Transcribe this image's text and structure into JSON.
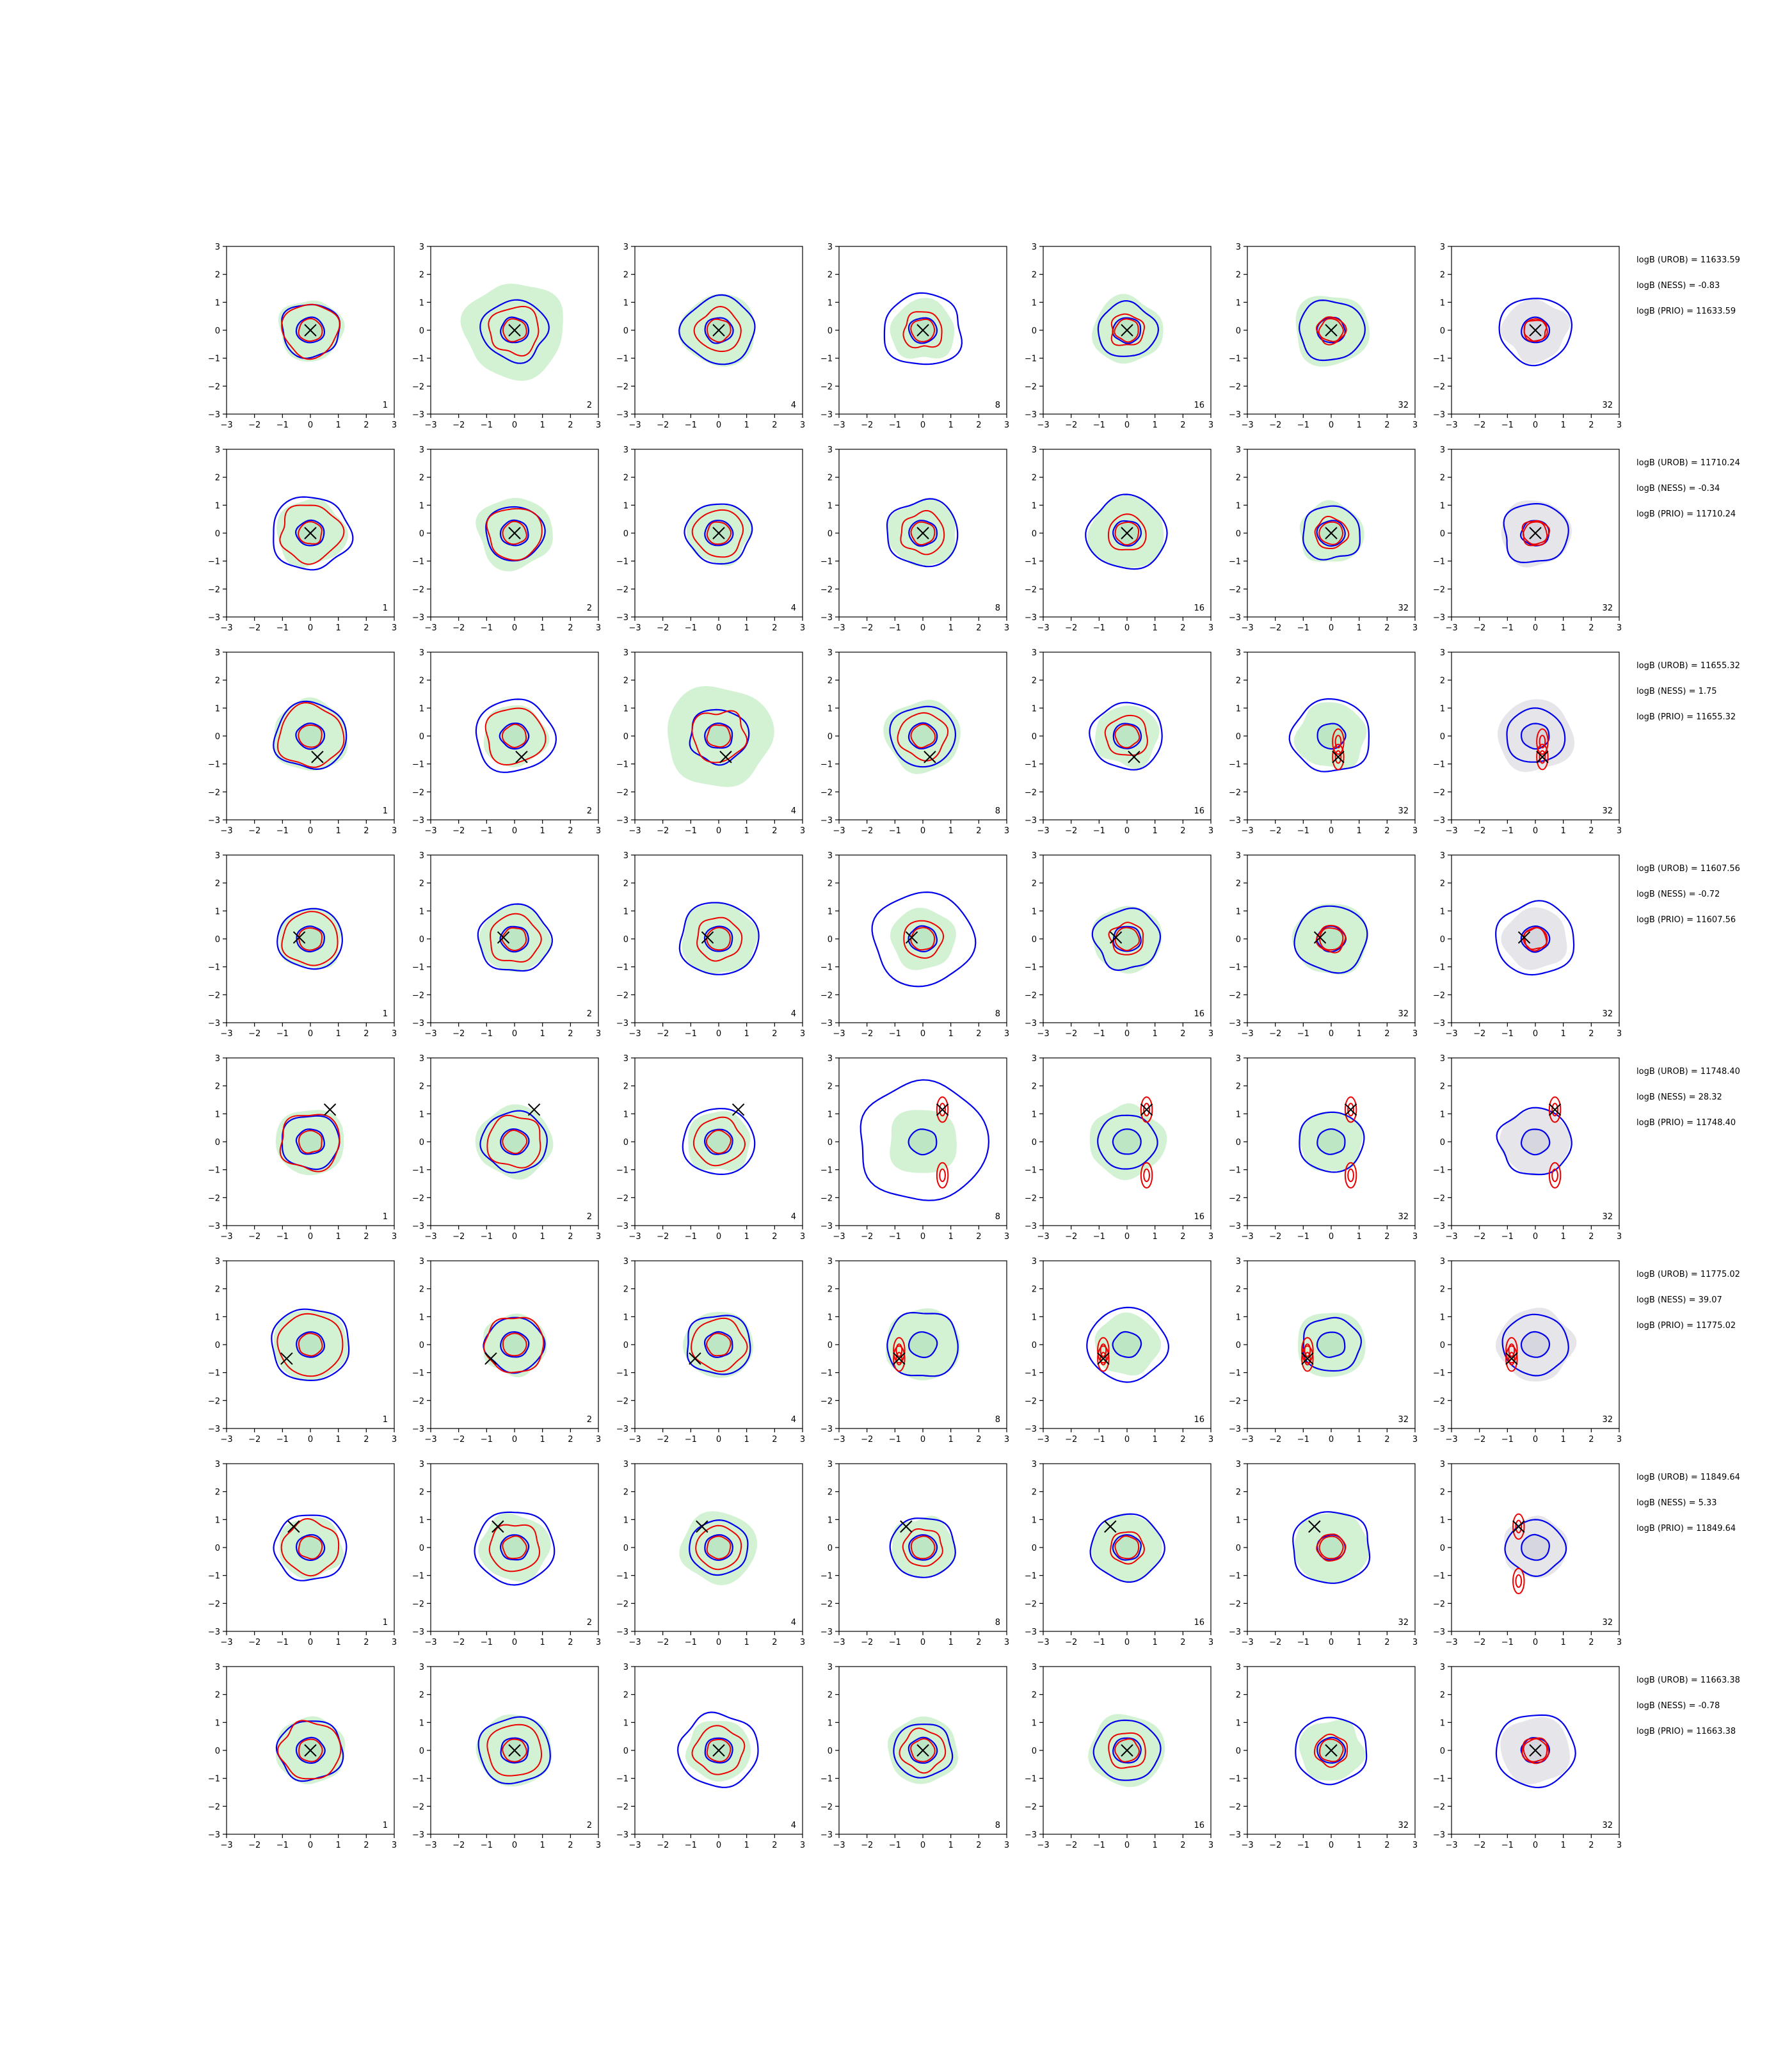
{
  "colors": {
    "kde_fill": "#d3f2d3",
    "kde_fill_inner": "#bde6c5",
    "prior_fill": "#e6e6ea",
    "prior_fill_inner": "#d6d6de",
    "blue_contour": "#0000ee",
    "red_contour": "#ee0000",
    "marker": "#000000",
    "axis": "#000000"
  },
  "chart_data": {
    "type": "contour-grid",
    "grid": {
      "rows": 8,
      "cols": 7
    },
    "panel_labels": [
      "1",
      "2",
      "4",
      "8",
      "16",
      "32",
      "32"
    ],
    "panel_background_by_column": [
      "green",
      "green",
      "green",
      "green",
      "green",
      "green",
      "gray"
    ],
    "xlim": [
      -3,
      3
    ],
    "ylim": [
      -3,
      3
    ],
    "x_ticks": [
      "−3",
      "−2",
      "−1",
      "0",
      "1",
      "2",
      "3"
    ],
    "y_ticks": [
      "−3",
      "−2",
      "−1",
      "0",
      "1",
      "2",
      "3"
    ],
    "rows": [
      {
        "marker": [
          0.0,
          0.0
        ],
        "ann": [
          "logB (UROB) = 11633.59",
          "logB (NESS) = -0.83",
          "logB (PRIO) = 11633.59"
        ]
      },
      {
        "marker": [
          0.0,
          0.0
        ],
        "ann": [
          "logB (UROB) = 11710.24",
          "logB (NESS) = -0.34",
          "logB (PRIO) = 11710.24"
        ]
      },
      {
        "marker": [
          0.25,
          -0.75
        ],
        "ann": [
          "logB (UROB) = 11655.32",
          "logB (NESS) = 1.75",
          "logB (PRIO) = 11655.32"
        ]
      },
      {
        "marker": [
          -0.4,
          0.05
        ],
        "ann": [
          "logB (UROB) = 11607.56",
          "logB (NESS) = -0.72",
          "logB (PRIO) = 11607.56"
        ]
      },
      {
        "marker": [
          0.7,
          1.15
        ],
        "ann": [
          "logB (UROB) = 11748.40",
          "logB (NESS) = 28.32",
          "logB (PRIO) = 11748.40"
        ]
      },
      {
        "marker": [
          -0.85,
          -0.5
        ],
        "ann": [
          "logB (UROB) = 11775.02",
          "logB (NESS) = 39.07",
          "logB (PRIO) = 11775.02"
        ]
      },
      {
        "marker": [
          -0.6,
          0.75
        ],
        "ann": [
          "logB (UROB) = 11849.64",
          "logB (NESS) = 5.33",
          "logB (PRIO) = 11849.64"
        ]
      },
      {
        "marker": [
          0.0,
          0.0
        ],
        "ann": [
          "logB (UROB) = 11663.38",
          "logB (NESS) = -0.78",
          "logB (PRIO) = 11663.38"
        ]
      }
    ]
  }
}
